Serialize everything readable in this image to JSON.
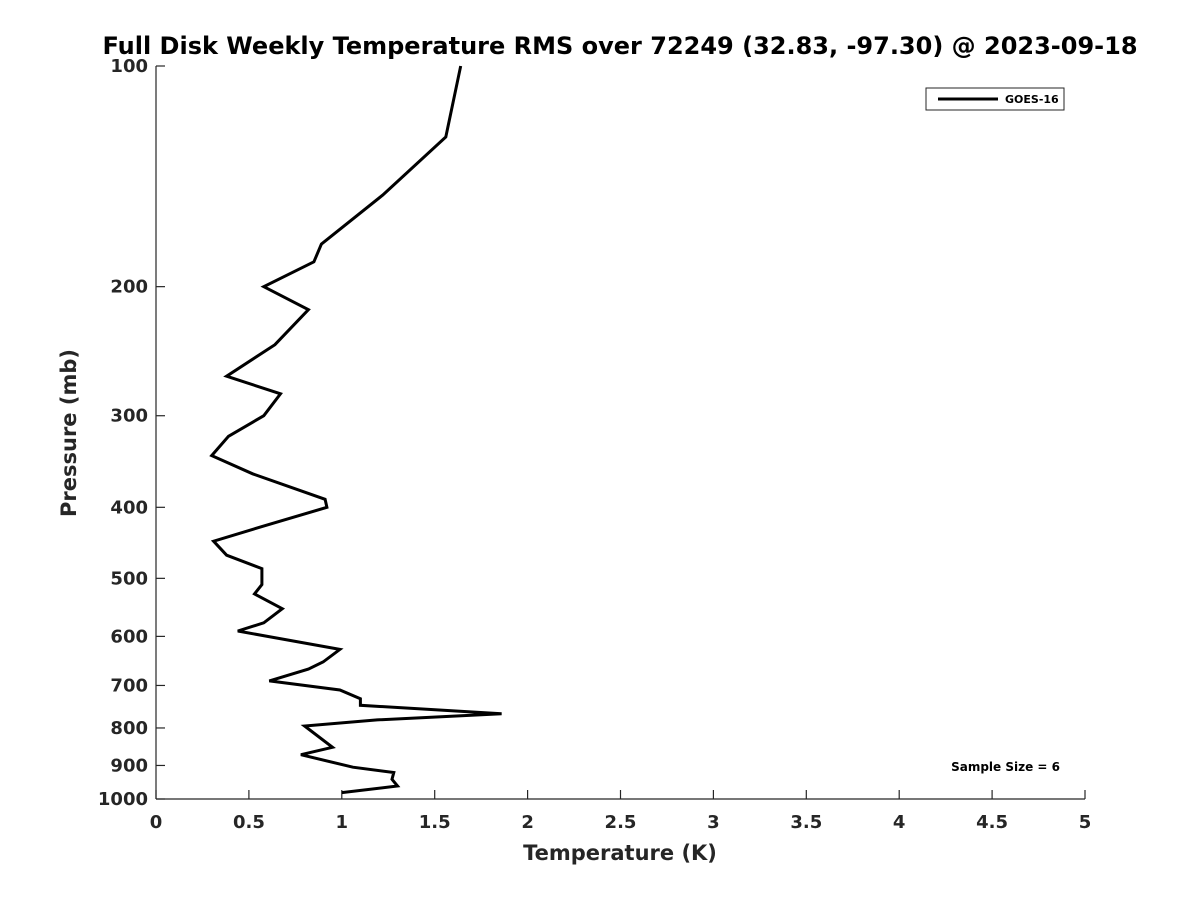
{
  "chart_data": {
    "type": "line",
    "title": "Full Disk Weekly Temperature RMS over 72249 (32.83, -97.30) @ 2023-09-18",
    "xlabel": "Temperature (K)",
    "ylabel": "Pressure (mb)",
    "xlim": [
      0,
      5
    ],
    "ylim": [
      100,
      1000
    ],
    "y_scale": "log",
    "y_reversed": true,
    "grid": false,
    "legend_position": "top-right",
    "xticks": [
      0,
      0.5,
      1,
      1.5,
      2,
      2.5,
      3,
      3.5,
      4,
      4.5,
      5
    ],
    "xtick_labels": [
      "0",
      "0.5",
      "1",
      "1.5",
      "2",
      "2.5",
      "3",
      "3.5",
      "4",
      "4.5",
      "5"
    ],
    "yticks": [
      100,
      200,
      300,
      400,
      500,
      600,
      700,
      800,
      900,
      1000
    ],
    "ytick_labels": [
      "100",
      "200",
      "300",
      "400",
      "500",
      "600",
      "700",
      "800",
      "900",
      "1000"
    ],
    "series": [
      {
        "name": "GOES-16",
        "color": "#000000",
        "temperature": [
          1.64,
          1.56,
          1.22,
          0.89,
          0.85,
          0.58,
          0.82,
          0.64,
          0.38,
          0.67,
          0.58,
          0.39,
          0.3,
          0.52,
          0.91,
          0.92,
          0.57,
          0.31,
          0.38,
          0.57,
          0.57,
          0.53,
          0.68,
          0.58,
          0.44,
          0.99,
          0.9,
          0.82,
          0.61,
          0.99,
          1.1,
          1.1,
          1.86,
          1.19,
          0.8,
          0.95,
          0.78,
          1.06,
          1.28,
          1.27,
          1.3,
          1.0
        ],
        "pressure": [
          100,
          125,
          150,
          175,
          185,
          200,
          215,
          240,
          265,
          280,
          300,
          320,
          340,
          360,
          390,
          400,
          425,
          445,
          465,
          485,
          510,
          525,
          550,
          575,
          590,
          625,
          650,
          665,
          690,
          710,
          730,
          745,
          765,
          780,
          795,
          850,
          870,
          905,
          920,
          940,
          960,
          980
        ]
      }
    ],
    "annotation": "Sample Size = 6"
  }
}
